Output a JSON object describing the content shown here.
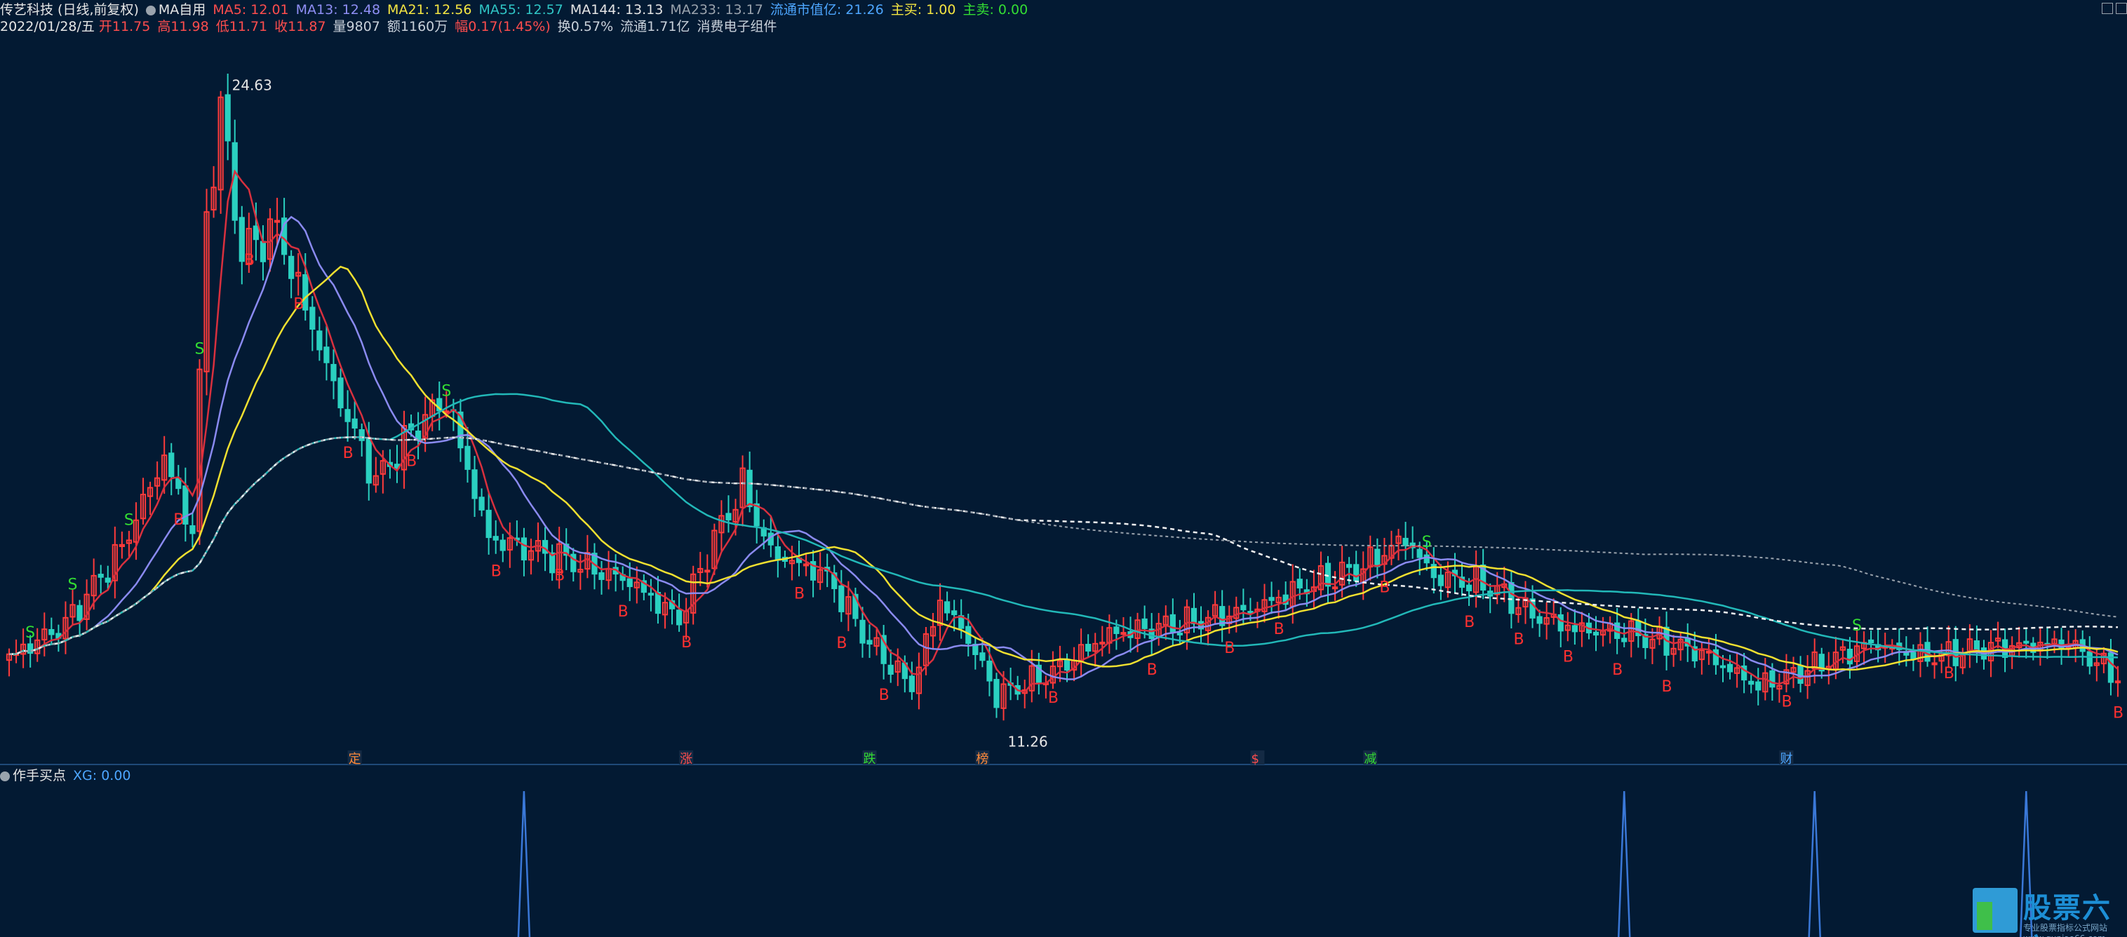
{
  "header": {
    "stock": "传艺科技 (日线,前复权)",
    "indicator": "MA自用",
    "ma_items": [
      {
        "text": "MA5: 12.01",
        "color": "#ff4d4d"
      },
      {
        "text": "MA13: 12.48",
        "color": "#8f8ff5"
      },
      {
        "text": "MA21: 12.56",
        "color": "#f5e642"
      },
      {
        "text": "MA55: 12.57",
        "color": "#2fc5c5"
      },
      {
        "text": "MA144: 13.13",
        "color": "#e6e6e6"
      },
      {
        "text": "MA233: 13.17",
        "color": "#9aa3ad"
      },
      {
        "text": "流通市值亿: 21.26",
        "color": "#4da6ff"
      },
      {
        "text": "主买: 1.00",
        "color": "#f5e642"
      },
      {
        "text": "主卖: 0.00",
        "color": "#33dd33"
      }
    ],
    "date": "2022/01/28/五",
    "quote_items": [
      {
        "text": "开11.75",
        "color": "#ff4d4d"
      },
      {
        "text": "高11.98",
        "color": "#ff4d4d"
      },
      {
        "text": "低11.71",
        "color": "#ff4d4d"
      },
      {
        "text": "收11.87",
        "color": "#ff4d4d"
      },
      {
        "text": "量9807",
        "color": "#c8d0da"
      },
      {
        "text": "额1160万",
        "color": "#c8d0da"
      },
      {
        "text": "幅0.17(1.45%)",
        "color": "#ff4d4d"
      },
      {
        "text": "换0.57%",
        "color": "#c8d0da"
      },
      {
        "text": "流通1.71亿",
        "color": "#c8d0da"
      },
      {
        "text": "消费电子组件",
        "color": "#c8d0da"
      }
    ]
  },
  "sub_header": {
    "name": "作手买点",
    "xg": "XG: 0.00"
  },
  "logo": {
    "text": "股票六六",
    "sub": "专业股票指标公式网站 www.gupiao66.com"
  },
  "chart_data": {
    "type": "candlestick",
    "colors": {
      "up": "#ff3b3b",
      "down": "#2ad0c0",
      "ma5": "#d9303e",
      "ma13": "#8a8af0",
      "ma21": "#f0e030",
      "ma55": "#22b8b8",
      "ma144": "#f0f0f0",
      "ma233": "#9aa3ad",
      "buy": "#ff3030",
      "sell": "#33dd33",
      "xg": "#3a78d8"
    },
    "n_bars": 300,
    "ylim": [
      10.5,
      25.2
    ],
    "high_label": "24.63",
    "low_label": "11.26",
    "anchors": [
      [
        0,
        12.3
      ],
      [
        8,
        13.0
      ],
      [
        16,
        14.6
      ],
      [
        22,
        16.5
      ],
      [
        26,
        14.9
      ],
      [
        28,
        21.5
      ],
      [
        30,
        23.8
      ],
      [
        33,
        20.8
      ],
      [
        38,
        21.3
      ],
      [
        46,
        18.0
      ],
      [
        52,
        16.0
      ],
      [
        58,
        17.2
      ],
      [
        62,
        17.7
      ],
      [
        68,
        14.8
      ],
      [
        78,
        14.4
      ],
      [
        88,
        13.9
      ],
      [
        95,
        13.1
      ],
      [
        100,
        14.8
      ],
      [
        104,
        15.9
      ],
      [
        108,
        14.5
      ],
      [
        116,
        14.0
      ],
      [
        122,
        12.6
      ],
      [
        128,
        11.7
      ],
      [
        132,
        13.5
      ],
      [
        136,
        12.7
      ],
      [
        140,
        11.5
      ],
      [
        148,
        12.0
      ],
      [
        156,
        12.8
      ],
      [
        166,
        13.0
      ],
      [
        176,
        13.3
      ],
      [
        184,
        13.8
      ],
      [
        192,
        14.2
      ],
      [
        198,
        14.8
      ],
      [
        202,
        14.0
      ],
      [
        210,
        13.8
      ],
      [
        216,
        13.2
      ],
      [
        222,
        12.9
      ],
      [
        230,
        12.8
      ],
      [
        240,
        12.4
      ],
      [
        248,
        11.7
      ],
      [
        254,
        12.0
      ],
      [
        264,
        12.6
      ],
      [
        272,
        12.3
      ],
      [
        280,
        12.5
      ],
      [
        292,
        12.6
      ],
      [
        299,
        11.9
      ]
    ],
    "signals": [
      {
        "i": 3,
        "t": "S"
      },
      {
        "i": 9,
        "t": "S"
      },
      {
        "i": 17,
        "t": "S"
      },
      {
        "i": 24,
        "t": "B"
      },
      {
        "i": 27,
        "t": "S"
      },
      {
        "i": 34,
        "t": "B"
      },
      {
        "i": 41,
        "t": "B"
      },
      {
        "i": 48,
        "t": "B"
      },
      {
        "i": 57,
        "t": "B"
      },
      {
        "i": 62,
        "t": "S"
      },
      {
        "i": 69,
        "t": "B"
      },
      {
        "i": 78,
        "t": "B"
      },
      {
        "i": 87,
        "t": "B"
      },
      {
        "i": 96,
        "t": "B"
      },
      {
        "i": 112,
        "t": "B"
      },
      {
        "i": 118,
        "t": "B"
      },
      {
        "i": 124,
        "t": "B"
      },
      {
        "i": 148,
        "t": "B"
      },
      {
        "i": 162,
        "t": "B"
      },
      {
        "i": 173,
        "t": "B"
      },
      {
        "i": 180,
        "t": "B"
      },
      {
        "i": 195,
        "t": "B"
      },
      {
        "i": 201,
        "t": "S"
      },
      {
        "i": 207,
        "t": "B"
      },
      {
        "i": 214,
        "t": "B"
      },
      {
        "i": 221,
        "t": "B"
      },
      {
        "i": 228,
        "t": "B"
      },
      {
        "i": 235,
        "t": "B"
      },
      {
        "i": 252,
        "t": "B"
      },
      {
        "i": 262,
        "t": "S"
      },
      {
        "i": 275,
        "t": "B"
      },
      {
        "i": 299,
        "t": "B"
      }
    ],
    "events": [
      {
        "i": 49,
        "t": "定",
        "color": "#ff8a3a"
      },
      {
        "i": 96,
        "t": "涨",
        "color": "#ff4d4d"
      },
      {
        "i": 122,
        "t": "跌",
        "color": "#33dd33"
      },
      {
        "i": 138,
        "t": "榜",
        "color": "#ff8a3a"
      },
      {
        "i": 177,
        "t": "$",
        "color": "#ff4d4d"
      },
      {
        "i": 193,
        "t": "减",
        "color": "#33dd33"
      },
      {
        "i": 252,
        "t": "财",
        "color": "#4da6ff"
      }
    ],
    "xg_spikes": [
      73,
      229,
      256,
      286
    ]
  }
}
